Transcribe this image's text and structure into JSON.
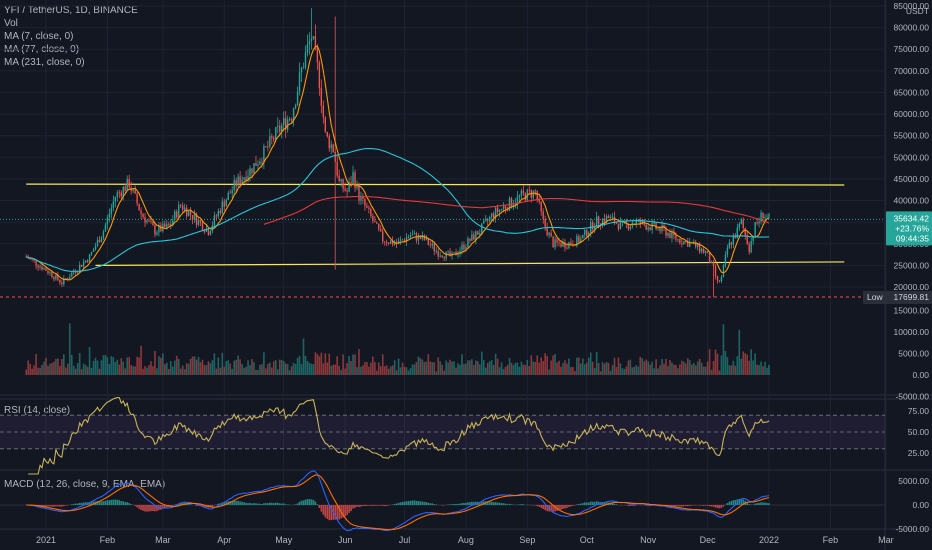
{
  "header": {
    "title": "YFI / TetherUS, 1D, BINANCE",
    "vol_label": "Vol",
    "indicators": [
      "MA (7, close, 0)",
      "MA (77, close, 0)",
      "MA (231, close, 0)"
    ]
  },
  "price_scale": {
    "unit": "USDT",
    "ticks": [
      "85000.00",
      "80000.00",
      "75000.00",
      "70000.00",
      "65000.00",
      "60000.00",
      "55000.00",
      "50000.00",
      "45000.00",
      "40000.00",
      "35000.00",
      "30000.00",
      "25000.00",
      "20000.00"
    ],
    "tick_values": [
      85000,
      80000,
      75000,
      70000,
      65000,
      60000,
      55000,
      50000,
      45000,
      40000,
      35000,
      30000,
      25000,
      20000
    ],
    "last_price": "35634.42",
    "change": "+23.76%",
    "countdown": "09:44:35",
    "low_label": "Low",
    "low_value": "17699.81",
    "last_value": 35634.42,
    "low_price": 17699.81
  },
  "volume_scale": {
    "ticks": [
      "15000.00",
      "10000.00",
      "5000.00",
      "0.00",
      "-5000.00"
    ],
    "tick_values": [
      15000,
      10000,
      5000,
      0,
      -5000
    ]
  },
  "rsi": {
    "label": "RSI (14, close)",
    "ticks": [
      "75.00",
      "50.00",
      "25.00"
    ],
    "tick_values": [
      75,
      50,
      25
    ],
    "bands": [
      70,
      30
    ]
  },
  "macd": {
    "label": "MACD (12, 26, close, 9, EMA, EMA)",
    "ticks": [
      "5000.00",
      "0.00",
      "-5000.00"
    ],
    "tick_values": [
      5000,
      0,
      -5000
    ]
  },
  "time_axis": {
    "labels": [
      "2021",
      "Feb",
      "Mar",
      "Apr",
      "May",
      "Jun",
      "Jul",
      "Aug",
      "Sep",
      "Oct",
      "Nov",
      "Dec",
      "2022",
      "Feb",
      "Mar"
    ],
    "days": [
      0,
      31,
      59,
      90,
      120,
      151,
      181,
      212,
      243,
      273,
      304,
      334,
      365,
      396,
      424
    ]
  },
  "colors": {
    "background": "#131722",
    "up": "#26a69a",
    "down": "#ef5350",
    "ma7": "#ff9800",
    "ma77": "#26c6da",
    "ma231": "#e53935",
    "trendline": "#f5e663",
    "rsi": "#c9b458",
    "macd": "#2962ff",
    "signal": "#ff6d00"
  },
  "chart_data": {
    "type": "candlestick",
    "ylim": [
      15000,
      85000
    ],
    "x_unit": "days since 2021-01-01",
    "series": [
      {
        "name": "close",
        "x": [
          -10,
          0,
          8,
          15,
          22,
          29,
          35,
          42,
          48,
          55,
          62,
          68,
          75,
          82,
          89,
          96,
          103,
          110,
          117,
          124,
          130,
          134,
          138,
          141,
          145,
          148,
          152,
          155,
          158,
          163,
          170,
          177,
          184,
          191,
          198,
          205,
          212,
          219,
          226,
          233,
          240,
          247,
          251,
          256,
          263,
          270,
          277,
          284,
          291,
          298,
          305,
          312,
          319,
          326,
          333,
          337,
          339,
          341,
          344,
          348,
          351,
          355,
          358,
          362,
          365
        ],
        "y": [
          27000,
          24000,
          21000,
          24000,
          27000,
          33000,
          41000,
          44000,
          37000,
          33000,
          34000,
          39000,
          36000,
          33000,
          39000,
          44000,
          47000,
          51000,
          56000,
          60000,
          72000,
          78000,
          68000,
          55000,
          52000,
          44000,
          42000,
          46000,
          41000,
          37000,
          31000,
          30000,
          32000,
          31000,
          28000,
          27000,
          30000,
          33000,
          37000,
          39000,
          41000,
          42000,
          35000,
          30000,
          30000,
          31000,
          35000,
          36000,
          34000,
          35000,
          34000,
          33000,
          31000,
          30000,
          28000,
          24000,
          21000,
          22000,
          29000,
          32000,
          35000,
          29000,
          34000,
          37000,
          35634
        ]
      }
    ],
    "annotations": [
      {
        "type": "trendline",
        "from": [
          -10,
          43800
        ],
        "to": [
          403,
          43600
        ]
      },
      {
        "type": "trendline",
        "from": [
          25,
          25000
        ],
        "to": [
          403,
          25800
        ]
      },
      {
        "type": "horizontal-line",
        "y": 17699.81
      }
    ]
  }
}
